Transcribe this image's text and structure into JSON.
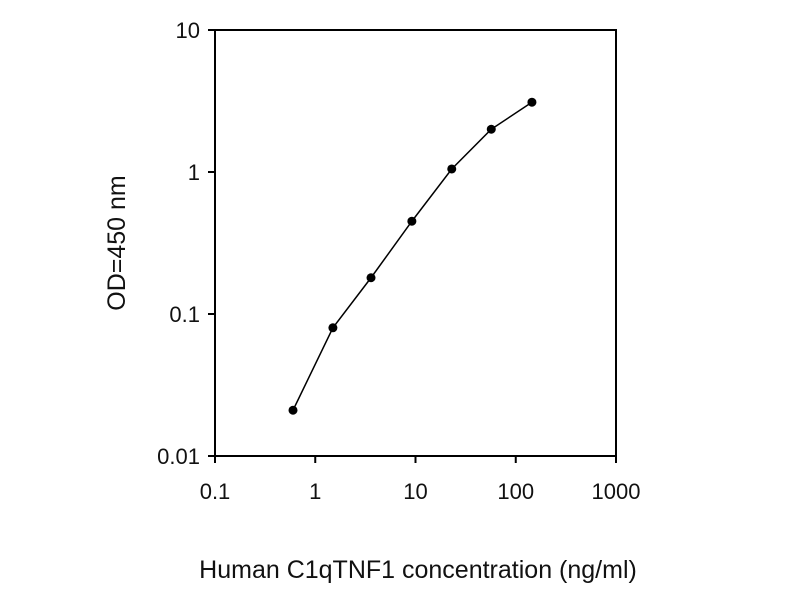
{
  "chart_data": {
    "type": "line",
    "title": "",
    "xlabel": "Human C1qTNF1 concentration (ng/ml)",
    "ylabel": "OD=450 nm",
    "xscale": "log",
    "yscale": "log",
    "xlim": [
      0.1,
      1000
    ],
    "ylim": [
      0.01,
      10
    ],
    "x_ticks": [
      0.1,
      1,
      10,
      100,
      1000
    ],
    "x_tick_labels": [
      "0.1",
      "1",
      "10",
      "100",
      "1000"
    ],
    "y_ticks": [
      0.01,
      0.1,
      1,
      10
    ],
    "y_tick_labels": [
      "0.01",
      "0.1",
      "1",
      "10"
    ],
    "grid": false,
    "legend": "none",
    "series": [
      {
        "x": [
          0.6,
          1.5,
          3.6,
          9.2,
          23,
          57,
          145
        ],
        "y": [
          0.021,
          0.08,
          0.18,
          0.45,
          1.05,
          2.0,
          3.1
        ],
        "marker": "circle",
        "color": "#000000"
      }
    ]
  }
}
